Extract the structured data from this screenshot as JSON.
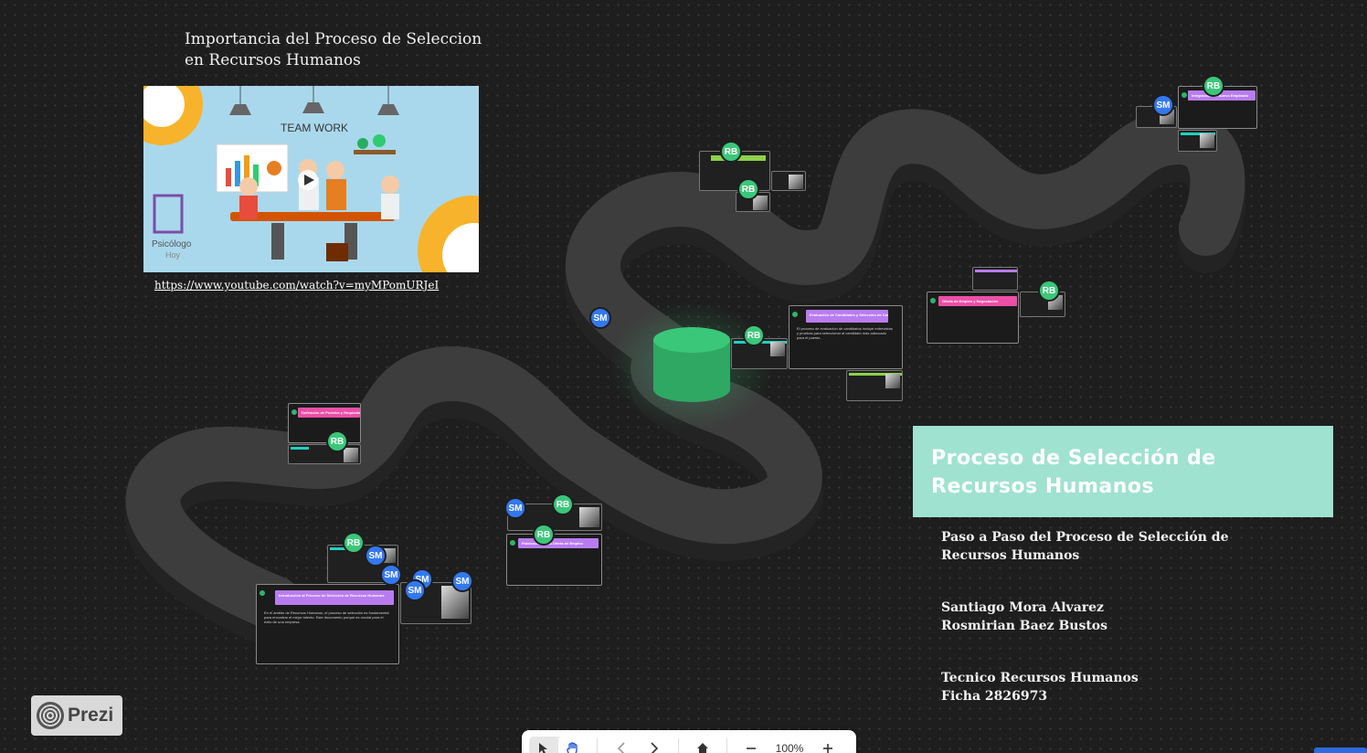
{
  "video": {
    "title": "Importancia del Proceso de Seleccion en Recursos Humanos",
    "thumbnail_heading": "TEAM WORK",
    "thumbnail_brand_line1": "Psicólogo",
    "thumbnail_brand_line2": "Hoy",
    "link": "https://www.youtube.com/watch?v=myMPomURJeI"
  },
  "cards": [
    {
      "title": "Introducción al Proceso de Selección de Recursos Humanos",
      "color": "#b97cf0",
      "text": "En el ámbito de Recursos Humanos, el proceso de selección es fundamental para encontrar el mejor talento. Este documento porque es crucial para el éxito de una empresa."
    },
    {
      "title": "Definición de Puestos y Requisitos",
      "color": "#ec4fa8",
      "text": ""
    },
    {
      "title": "Publicación de la Oferta de Empleo",
      "color": "#b97cf0",
      "text": ""
    },
    {
      "title": "Evaluación de Candidatos y Selección de Candidatos",
      "color": "#b97cf0",
      "text": "El proceso de evaluación de candidatos incluye entrevistas y pruebas para seleccionar al candidato más adecuado para el puesto."
    },
    {
      "title": "Oferta de Empleo y Negociación",
      "color": "#ec4fa8",
      "text": ""
    },
    {
      "title": "Integración del Nuevo Empleado",
      "color": "#b97cf0",
      "text": ""
    }
  ],
  "collaborators": {
    "rb": "RB",
    "sm": "SM"
  },
  "presentation": {
    "title": "Proceso de Selección de Recursos Humanos",
    "subtitle_line1": "Paso a Paso del Proceso de Selección de",
    "subtitle_line2": "Recursos Humanos",
    "author1": "Santiago Mora Alvarez",
    "author2": "Rosmirian Baez Bustos",
    "program": "Tecnico Recursos Humanos",
    "ficha": "Ficha 2826973"
  },
  "brand": {
    "name": "Prezi"
  },
  "toolbar": {
    "zoom": "100%"
  },
  "colors": {
    "accent_green": "#3bc779",
    "accent_blue": "#3378f0",
    "title_bg": "#9fe2cf"
  }
}
